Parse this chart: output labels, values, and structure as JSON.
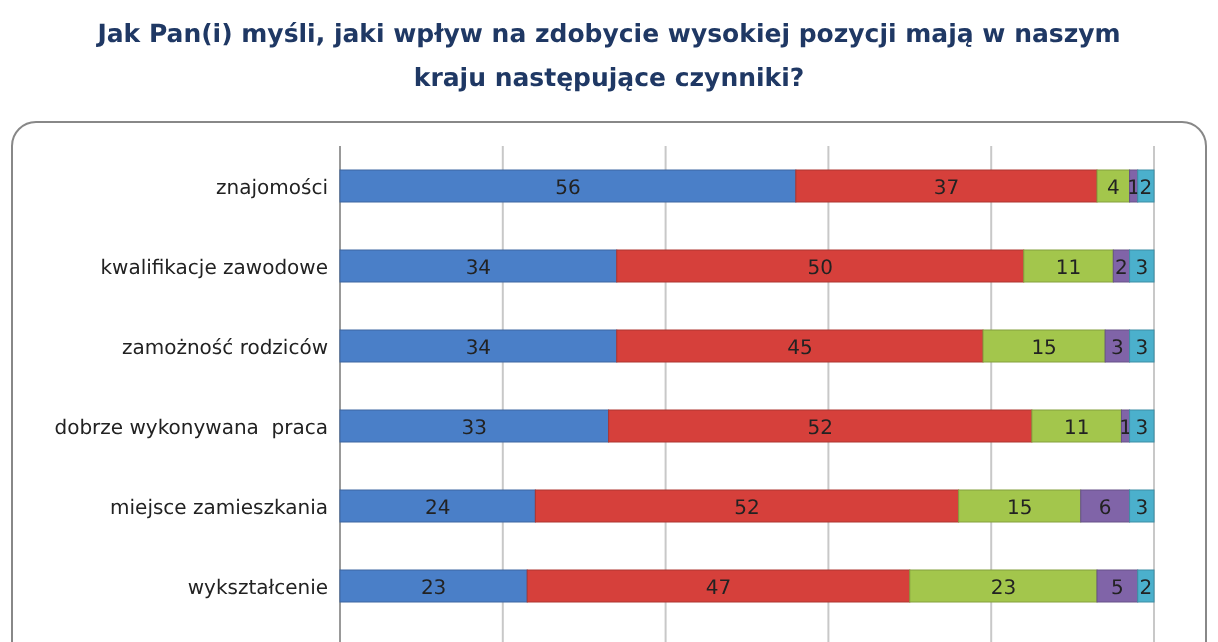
{
  "chart_data": {
    "type": "bar",
    "orientation": "horizontal",
    "stacked": true,
    "title": "Jak Pan(i) myśli, jaki wpływ na zdobycie wysokiej pozycji mają w naszym kraju następujące czynniki?",
    "categories": [
      "znajomości",
      "kwalifikacje zawodowe",
      "zamożność rodziców",
      "dobrze wykonywana  praca",
      "miejsce zamieszkania",
      "wykształcenie"
    ],
    "series": [
      {
        "color": "#4a7fc8",
        "values": [
          56,
          34,
          34,
          33,
          24,
          23
        ]
      },
      {
        "color": "#d6403b",
        "values": [
          37,
          50,
          45,
          52,
          52,
          47
        ]
      },
      {
        "color": "#a3c64c",
        "values": [
          4,
          11,
          15,
          11,
          15,
          23
        ]
      },
      {
        "color": "#8064a8",
        "values": [
          1,
          2,
          3,
          1,
          6,
          5
        ]
      },
      {
        "color": "#4bb0cc",
        "values": [
          2,
          3,
          3,
          3,
          3,
          2
        ]
      }
    ],
    "xlim": [
      0,
      100
    ],
    "xticks": [
      {
        "value": 0,
        "label": null
      },
      {
        "value": 20,
        "label": null
      },
      {
        "value": 40,
        "label": null
      },
      {
        "value": 60,
        "label": null
      },
      {
        "value": 80,
        "label": null
      },
      {
        "value": 100,
        "label": null
      }
    ],
    "tick_labels": "y",
    "grid": "x",
    "data_labels": true
  }
}
